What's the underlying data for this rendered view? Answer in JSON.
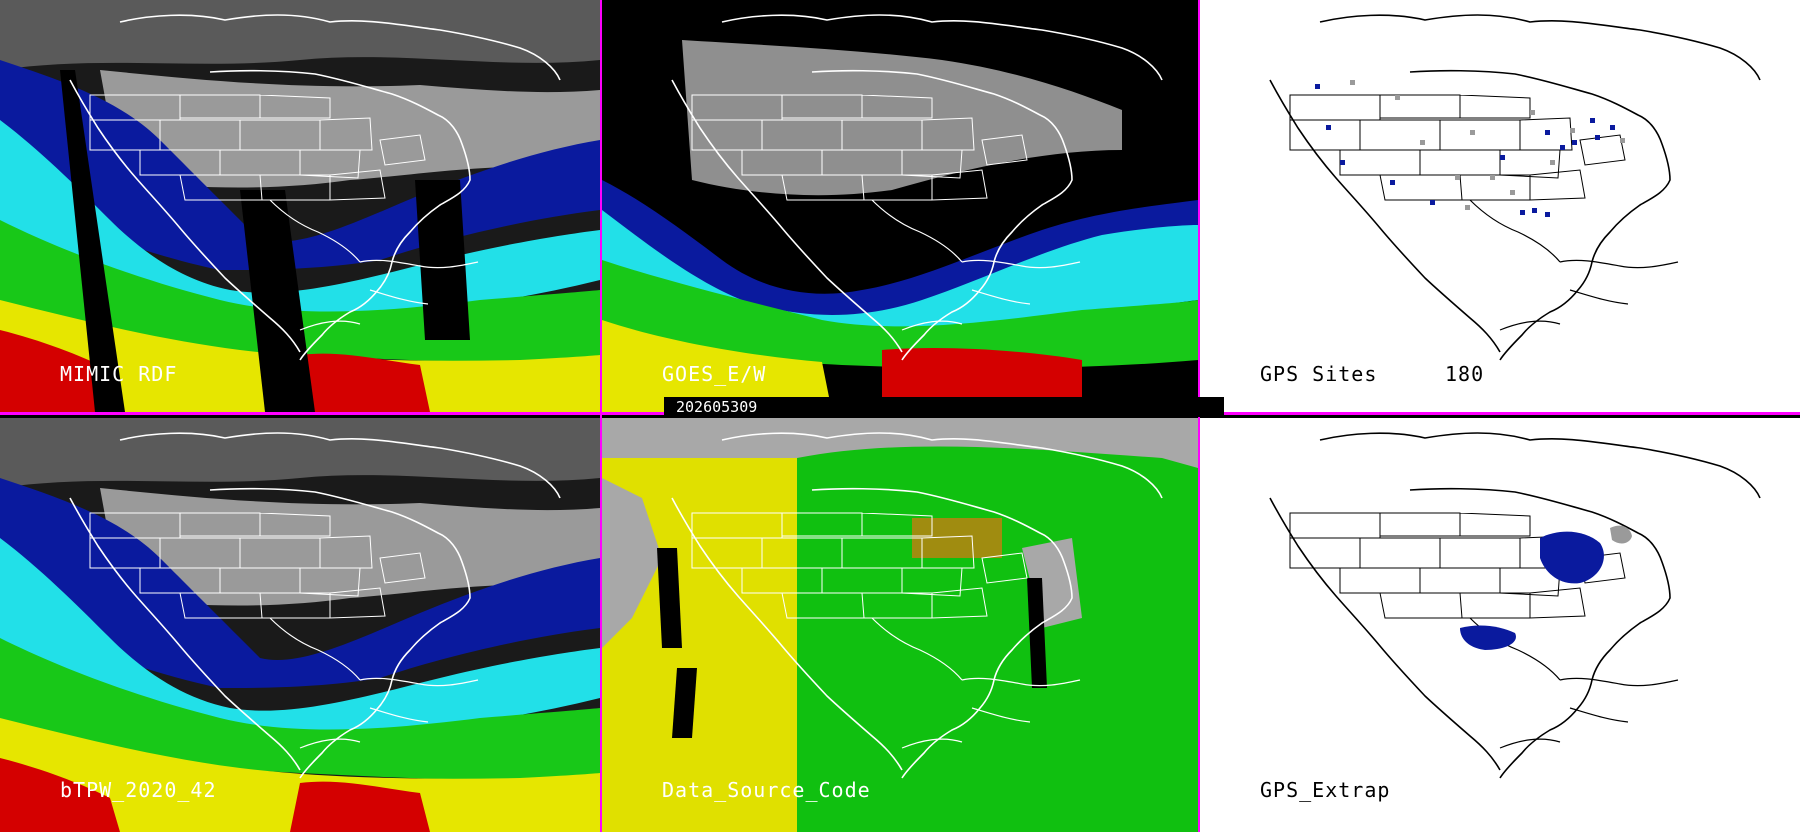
{
  "timestamp": "202605309",
  "panels": [
    {
      "id": "mimic",
      "label": "MIMIC RDF"
    },
    {
      "id": "goes",
      "label": "GOES_E/W"
    },
    {
      "id": "gps-sites",
      "label": "GPS Sites",
      "count": "180"
    },
    {
      "id": "btpw",
      "label": "bTPW_2020_42"
    },
    {
      "id": "dsc",
      "label": "Data_Source_Code"
    },
    {
      "id": "gps-extrap",
      "label": "GPS_Extrap"
    }
  ],
  "colors": {
    "divider": "#ff00ff",
    "dry_dark": "#1a1a1a",
    "gray": "#9a9a9a",
    "blue": "#0a1a9e",
    "cyan": "#22e0e8",
    "green": "#18c818",
    "yellow": "#e6e600",
    "red": "#d40000",
    "dsc_gray": "#a8a8a8",
    "dsc_yellow": "#e0e000",
    "dsc_green": "#10c010",
    "dsc_olive": "#a08c10"
  }
}
